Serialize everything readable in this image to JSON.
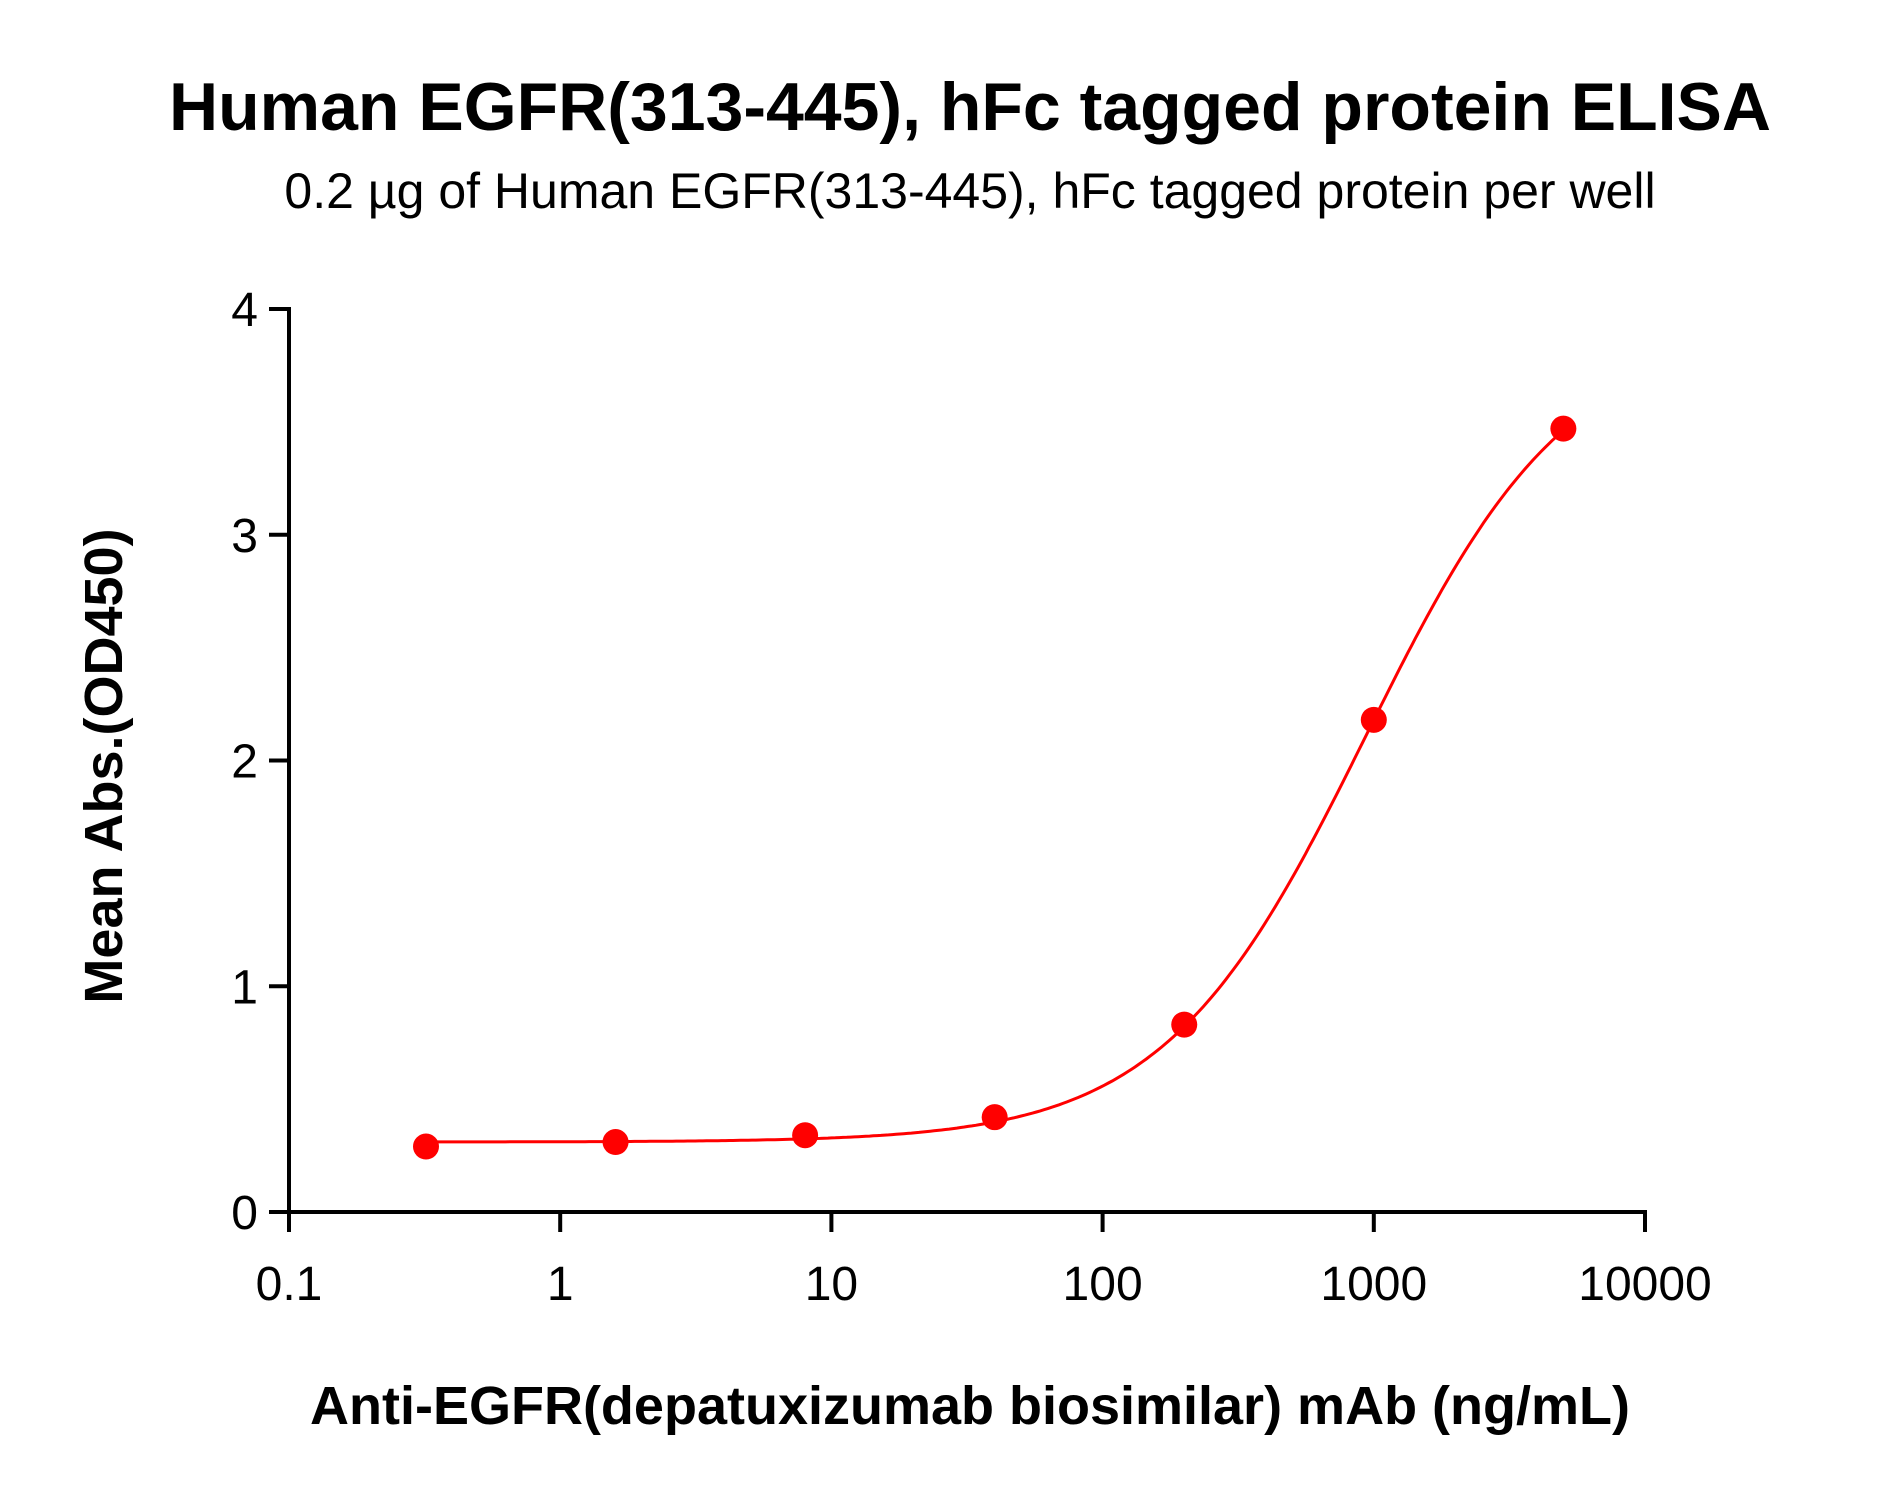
{
  "chart_data": {
    "type": "scatter",
    "title": "Human EGFR(313-445), hFc tagged protein ELISA",
    "subtitle": "0.2 µg of Human EGFR(313-445), hFc tagged protein per well",
    "xlabel": "Anti-EGFR(depatuxizumab biosimilar) mAb (ng/mL)",
    "ylabel": "Mean Abs.(OD450)",
    "xscale": "log",
    "xlim": [
      0.1,
      10000
    ],
    "ylim": [
      0,
      4
    ],
    "xticks": [
      "0.1",
      "1",
      "10",
      "100",
      "1000",
      "10000"
    ],
    "yticks": [
      "0",
      "1",
      "2",
      "3",
      "4"
    ],
    "grid": false,
    "color": "#ff0000",
    "series": [
      {
        "x": [
          0.32,
          1.6,
          8,
          40,
          200,
          1000,
          5000
        ],
        "y": [
          0.29,
          0.31,
          0.34,
          0.42,
          0.83,
          2.18,
          3.47
        ],
        "fit": "4PL sigmoidal curve"
      }
    ]
  }
}
